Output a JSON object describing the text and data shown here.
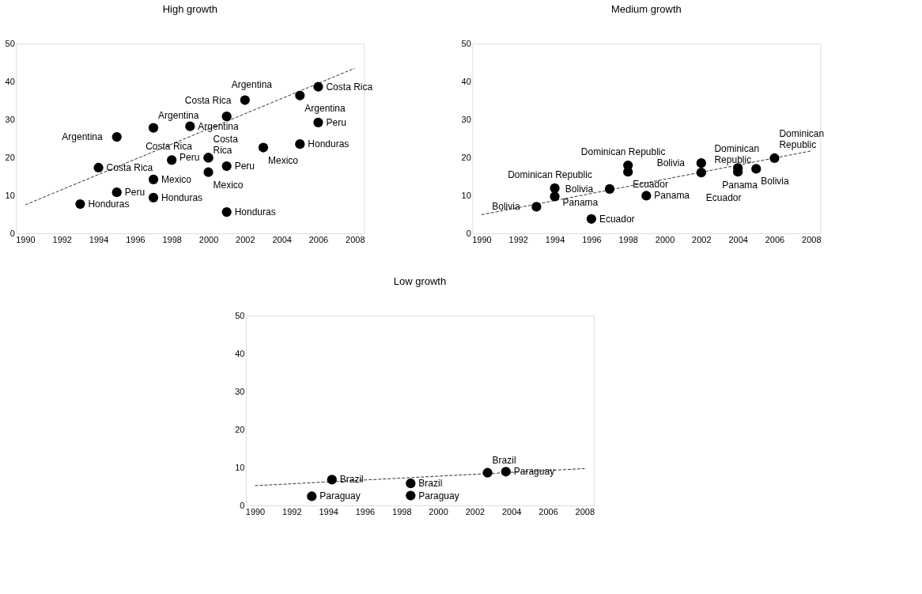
{
  "chart_data": [
    {
      "type": "scatter",
      "title": "High growth",
      "xlim": [
        1989.5,
        2008.5
      ],
      "ylim": [
        0,
        50
      ],
      "xticks": [
        1990,
        1992,
        1994,
        1996,
        1998,
        2000,
        2002,
        2004,
        2006,
        2008
      ],
      "yticks": [
        0,
        10,
        20,
        30,
        40,
        50
      ],
      "grid": false,
      "marker": "circle",
      "series": [
        {
          "name": "Honduras",
          "color": "#000000",
          "x": [
            1993,
            1997,
            2001,
            2005
          ],
          "values": [
            7.7,
            9.4,
            5.6,
            23.5
          ]
        },
        {
          "name": "Costa Rica",
          "color": "#000000",
          "x": [
            1994,
            1998,
            2000,
            2002,
            2006
          ],
          "values": [
            17.3,
            19.3,
            19.9,
            35.1,
            38.6
          ]
        },
        {
          "name": "Peru",
          "color": "#000000",
          "x": [
            1995,
            2000,
            2001,
            2006
          ],
          "values": [
            10.8,
            19.9,
            17.7,
            29.2
          ]
        },
        {
          "name": "Argentina",
          "color": "#000000",
          "x": [
            1995,
            1997,
            1999,
            2001,
            2005
          ],
          "values": [
            25.4,
            27.8,
            28.2,
            30.8,
            36.3
          ]
        },
        {
          "name": "Mexico",
          "color": "#000000",
          "x": [
            1997,
            2000,
            2003
          ],
          "values": [
            14.2,
            16.1,
            22.6
          ]
        },
        {
          "type": "line",
          "line_style": "dashed",
          "marker": "none",
          "color": "#000000",
          "x": [
            1990,
            2008
          ],
          "values": [
            7.5,
            43.5
          ]
        }
      ]
    },
    {
      "type": "scatter",
      "title": "Medium growth",
      "xlim": [
        1989.5,
        2008.5
      ],
      "ylim": [
        0,
        50
      ],
      "xticks": [
        1990,
        1992,
        1994,
        1996,
        1998,
        2000,
        2002,
        2004,
        2006,
        2008
      ],
      "yticks": [
        0,
        10,
        20,
        30,
        40,
        50
      ],
      "grid": false,
      "marker": "circle",
      "series": [
        {
          "name": "Bolivia",
          "color": "#000000",
          "x": [
            1993,
            1997,
            2002,
            2005
          ],
          "values": [
            7.0,
            11.7,
            18.5,
            17.0
          ]
        },
        {
          "name": "Dominican Republic",
          "color": "#000000",
          "x": [
            1994,
            1998,
            2004,
            2006
          ],
          "values": [
            11.9,
            17.9,
            17.2,
            19.8
          ]
        },
        {
          "name": "Panama",
          "color": "#000000",
          "x": [
            1994,
            1999,
            2004
          ],
          "values": [
            9.7,
            9.9,
            16.2
          ]
        },
        {
          "name": "Ecuador",
          "color": "#000000",
          "x": [
            1996,
            1998,
            2002
          ],
          "values": [
            3.8,
            16.2,
            16.0
          ]
        },
        {
          "type": "line",
          "line_style": "dashed",
          "marker": "none",
          "color": "#000000",
          "x": [
            1990,
            2008
          ],
          "values": [
            4.9,
            21.7
          ]
        }
      ]
    },
    {
      "type": "scatter",
      "title": "Low growth",
      "xlim": [
        1989.5,
        2008.5
      ],
      "ylim": [
        0,
        50
      ],
      "xticks": [
        1990,
        1992,
        1994,
        1996,
        1998,
        2000,
        2002,
        2004,
        2006,
        2008
      ],
      "yticks": [
        0,
        10,
        20,
        30,
        40,
        50
      ],
      "grid": false,
      "marker": "circle",
      "series": [
        {
          "name": "Brazil",
          "color": "#000000",
          "x": [
            1994.2,
            1998.5,
            2002.7
          ],
          "values": [
            6.8,
            5.8,
            8.6
          ]
        },
        {
          "name": "Paraguay",
          "color": "#000000",
          "x": [
            1993.1,
            1998.5,
            2003.7
          ],
          "values": [
            2.4,
            2.6,
            8.9
          ]
        },
        {
          "type": "line",
          "line_style": "dashed",
          "marker": "none",
          "color": "#000000",
          "x": [
            1990,
            2008
          ],
          "values": [
            5.2,
            9.7
          ]
        }
      ]
    }
  ]
}
